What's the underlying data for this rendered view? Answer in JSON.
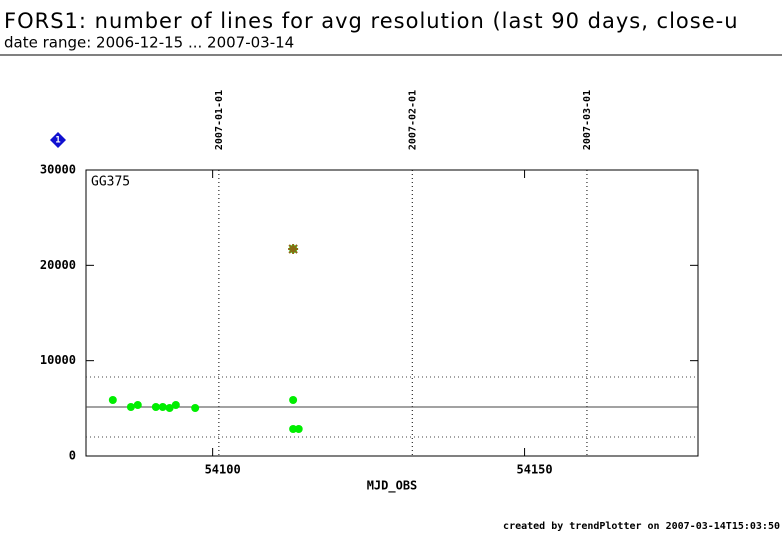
{
  "chart_data": {
    "type": "scatter",
    "title": "FORS1: number of lines for avg resolution (last 90 days, close-u",
    "subtitle": "date range: 2006-12-15 ... 2007-03-14",
    "panel_label": "GG375",
    "badge": "1",
    "xlabel": "MJD_OBS",
    "footer": "created by trendPlotter on 2007-03-14T15:03:50",
    "xlim": [
      54079.7,
      54177.8
    ],
    "xticks": [
      54100,
      54150
    ],
    "ylim": [
      0,
      30000
    ],
    "yticks": [
      0,
      10000,
      20000,
      30000
    ],
    "date_lines": [
      {
        "value": 54101,
        "label": "2007-01-01"
      },
      {
        "value": 54132,
        "label": "2007-02-01"
      },
      {
        "value": 54160,
        "label": "2007-03-01"
      }
    ],
    "reference_lines": [
      {
        "value": 5140,
        "style": "solid"
      },
      {
        "value": 8290,
        "style": "dotted"
      },
      {
        "value": 1990,
        "style": "dotted"
      }
    ],
    "series": [
      {
        "color": "#00ee00",
        "marker": "circle",
        "x": [
          54084.0,
          54086.9,
          54088.0,
          54090.9,
          54092.0,
          54093.1,
          54094.1,
          54097.2,
          54112.9,
          54112.9,
          54113.8
        ],
        "values": [
          5874,
          5140,
          5350,
          5140,
          5140,
          5035,
          5350,
          5035,
          5874,
          2832,
          2832
        ]
      },
      {
        "color": "#8b6914",
        "marker": "star",
        "x": [
          54112.9
        ],
        "values": [
          21713
        ]
      }
    ]
  }
}
